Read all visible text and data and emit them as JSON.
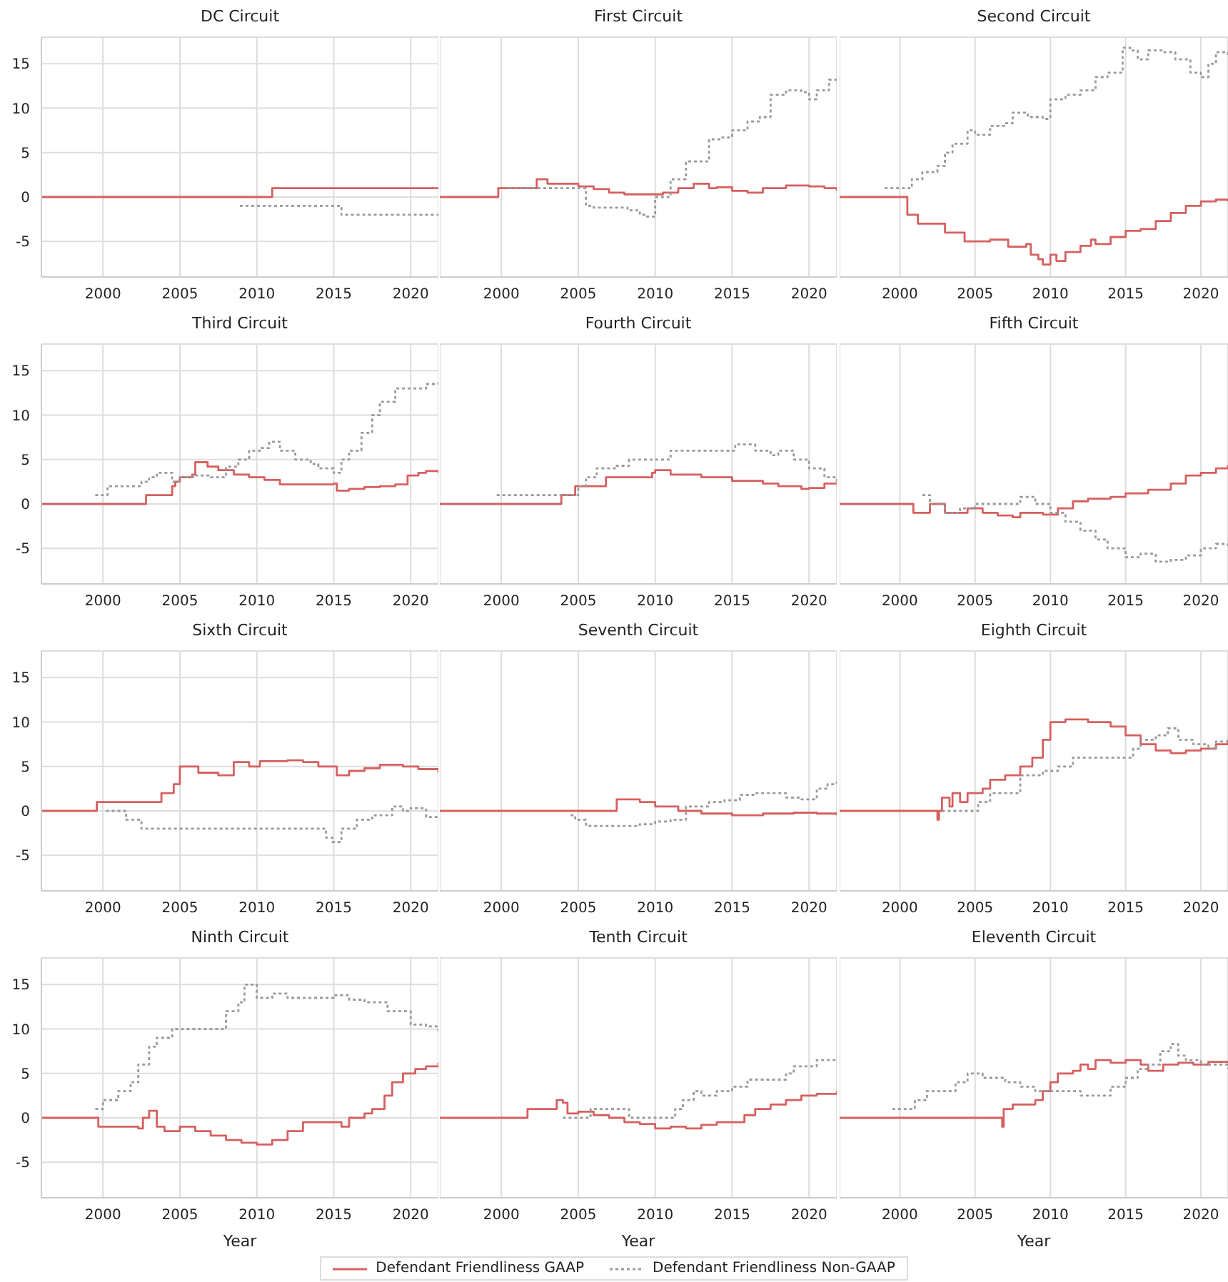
{
  "chart_data": [
    {
      "type": "step",
      "title": "DC Circuit",
      "xlim": [
        1996,
        2021.8
      ],
      "xticks": [
        2000,
        2005,
        2010,
        2015,
        2020
      ],
      "ylim": [
        -9,
        18
      ],
      "yticks": [
        -5,
        0,
        5,
        10,
        15
      ],
      "grid": true,
      "series": [
        {
          "color": "#d65f5f",
          "line_style": "solid",
          "x": [
            1996,
            2011,
            2021.8
          ],
          "values": [
            0,
            1,
            1
          ]
        },
        {
          "color": "#999999",
          "line_style": "dotted",
          "x": [
            2008.9,
            2015.5,
            2021.8
          ],
          "values": [
            -1,
            -2,
            -2
          ]
        }
      ]
    },
    {
      "type": "step",
      "title": "First Circuit",
      "xlim": [
        1996,
        2021.8
      ],
      "xticks": [
        2000,
        2005,
        2010,
        2015,
        2020
      ],
      "ylim": [
        -9,
        18
      ],
      "yticks": [
        -5,
        0,
        5,
        10,
        15
      ],
      "tick_labels": "x",
      "grid": true,
      "series": [
        {
          "color": "#d65f5f",
          "line_style": "solid",
          "x": [
            1996,
            1999.8,
            2002.3,
            2003,
            2005,
            2006,
            2007,
            2008,
            2010,
            2010.5,
            2011.5,
            2012.5,
            2013.5,
            2014,
            2015,
            2016,
            2017,
            2018.5,
            2020,
            2021,
            2021.8
          ],
          "values": [
            0,
            1,
            2,
            1.5,
            1.2,
            0.9,
            0.5,
            0.3,
            0.3,
            0.5,
            1,
            1.5,
            1,
            1.1,
            0.7,
            0.5,
            1,
            1.3,
            1.2,
            1,
            0.7
          ]
        },
        {
          "color": "#999999",
          "line_style": "dotted",
          "x": [
            2000.5,
            2005.5,
            2006,
            2008.2,
            2009,
            2009.3,
            2010,
            2011,
            2012,
            2012.8,
            2013.5,
            2014.3,
            2015,
            2016,
            2016.8,
            2017.5,
            2018.5,
            2019.5,
            2020,
            2020.5,
            2021.3,
            2021.8
          ],
          "values": [
            1,
            -1,
            -1.2,
            -1.5,
            -2,
            -2.2,
            0,
            2,
            4,
            4,
            6.5,
            6.7,
            7.5,
            8.5,
            9,
            11.5,
            12,
            11.8,
            11,
            12,
            13.2,
            12.8
          ]
        }
      ]
    },
    {
      "type": "step",
      "title": "Second Circuit",
      "xlim": [
        1996,
        2021.8
      ],
      "xticks": [
        2000,
        2005,
        2010,
        2015,
        2020
      ],
      "ylim": [
        -9,
        18
      ],
      "yticks": [
        -5,
        0,
        5,
        10,
        15
      ],
      "tick_labels": "x",
      "grid": true,
      "series": [
        {
          "color": "#d65f5f",
          "line_style": "solid",
          "x": [
            1996,
            2000.5,
            2001.2,
            2003,
            2004.3,
            2006,
            2007.2,
            2008.4,
            2008.7,
            2009.2,
            2009.5,
            2010,
            2010.4,
            2011,
            2012,
            2012.7,
            2013,
            2014,
            2015,
            2016,
            2017,
            2018,
            2019,
            2020,
            2021,
            2021.8
          ],
          "values": [
            0,
            -2,
            -3,
            -4,
            -5,
            -4.8,
            -5.6,
            -5.3,
            -6.5,
            -7,
            -7.6,
            -6.5,
            -7.2,
            -6.2,
            -5.5,
            -4.8,
            -5.3,
            -4.5,
            -3.8,
            -3.6,
            -2.7,
            -1.8,
            -1,
            -0.5,
            -0.3,
            -0.5
          ]
        },
        {
          "color": "#999999",
          "line_style": "dotted",
          "x": [
            1999,
            2000.8,
            2001.5,
            2002.5,
            2003,
            2003.5,
            2004.5,
            2005,
            2006,
            2007,
            2007.5,
            2008.5,
            2009.5,
            2010,
            2011,
            2012,
            2013,
            2013.8,
            2014.8,
            2015.3,
            2015.8,
            2016.5,
            2017.5,
            2018.3,
            2019.3,
            2020,
            2020.5,
            2021,
            2021.8
          ],
          "values": [
            1,
            2,
            2.8,
            3.5,
            5,
            6,
            7.5,
            7,
            8,
            8.3,
            9.5,
            9,
            8.8,
            11,
            11.5,
            12,
            13.5,
            14,
            16.8,
            16.5,
            15.5,
            16.5,
            16.3,
            15.5,
            14,
            13.5,
            15,
            16.3,
            15.8
          ]
        }
      ]
    },
    {
      "type": "step",
      "title": "Third Circuit",
      "xlim": [
        1996,
        2021.8
      ],
      "xticks": [
        2000,
        2005,
        2010,
        2015,
        2020
      ],
      "ylim": [
        -9,
        18
      ],
      "yticks": [
        -5,
        0,
        5,
        10,
        15
      ],
      "grid": true,
      "series": [
        {
          "color": "#d65f5f",
          "line_style": "solid",
          "x": [
            1996,
            2002.8,
            2004.5,
            2004.7,
            2005,
            2005.8,
            2006,
            2006.8,
            2007.5,
            2008.5,
            2009.5,
            2010.5,
            2011.5,
            2012.5,
            2014.5,
            2015,
            2015.2,
            2016,
            2017,
            2018,
            2019,
            2019.8,
            2020.5,
            2021,
            2021.8
          ],
          "values": [
            0,
            1,
            2,
            2.5,
            3,
            3.3,
            4.7,
            4.2,
            3.8,
            3.3,
            3,
            2.7,
            2.2,
            2.2,
            2.2,
            2.3,
            1.5,
            1.7,
            1.9,
            2,
            2.2,
            3.2,
            3.5,
            3.7,
            3.5
          ]
        },
        {
          "color": "#999999",
          "line_style": "dotted",
          "x": [
            1999.5,
            2000.3,
            2002.5,
            2003,
            2003.5,
            2004.5,
            2005,
            2006,
            2007,
            2008,
            2008.8,
            2009.5,
            2010.3,
            2010.8,
            2011.5,
            2012.5,
            2013.5,
            2014,
            2015,
            2015.5,
            2016,
            2016.8,
            2017.5,
            2018,
            2019,
            2020,
            2021,
            2021.8
          ],
          "values": [
            1,
            2,
            2.5,
            3,
            3.5,
            2.5,
            3,
            3.2,
            3,
            4.2,
            5,
            6,
            6.3,
            7,
            6,
            5,
            4.5,
            4,
            3.5,
            5,
            6,
            8,
            10,
            11.5,
            13,
            13,
            13.5,
            14
          ]
        }
      ]
    },
    {
      "type": "step",
      "title": "Fourth Circuit",
      "xlim": [
        1996,
        2021.8
      ],
      "xticks": [
        2000,
        2005,
        2010,
        2015,
        2020
      ],
      "ylim": [
        -9,
        18
      ],
      "yticks": [
        -5,
        0,
        5,
        10,
        15
      ],
      "tick_labels": "x",
      "grid": true,
      "series": [
        {
          "color": "#d65f5f",
          "line_style": "solid",
          "x": [
            1996,
            2003.9,
            2004.8,
            2006.8,
            2009.8,
            2010,
            2011,
            2013,
            2015,
            2017,
            2018,
            2019.5,
            2020,
            2021,
            2021.8
          ],
          "values": [
            0,
            1,
            2,
            3,
            3.5,
            3.8,
            3.3,
            3,
            2.6,
            2.3,
            2,
            1.7,
            1.8,
            2.3,
            2.2
          ]
        },
        {
          "color": "#999999",
          "line_style": "dotted",
          "x": [
            1999.7,
            2004.5,
            2005,
            2005.5,
            2006.2,
            2007.5,
            2008.3,
            2010.2,
            2011,
            2015,
            2015.2,
            2016.5,
            2017.5,
            2018,
            2019,
            2020,
            2021,
            2021.8
          ],
          "values": [
            1,
            1,
            2,
            3,
            4,
            4.3,
            5,
            5,
            6,
            6,
            6.7,
            6,
            5.5,
            6,
            5,
            4,
            3,
            2.5
          ]
        }
      ]
    },
    {
      "type": "step",
      "title": "Fifth Circuit",
      "xlim": [
        1996,
        2021.8
      ],
      "xticks": [
        2000,
        2005,
        2010,
        2015,
        2020
      ],
      "ylim": [
        -9,
        18
      ],
      "yticks": [
        -5,
        0,
        5,
        10,
        15
      ],
      "tick_labels": "x",
      "grid": true,
      "series": [
        {
          "color": "#d65f5f",
          "line_style": "solid",
          "x": [
            1996,
            2000.9,
            2002,
            2003,
            2004.5,
            2005.5,
            2006.5,
            2007.5,
            2008,
            2009.5,
            2010.5,
            2011.5,
            2012.5,
            2014,
            2015,
            2016.5,
            2018,
            2019,
            2020,
            2021,
            2021.8
          ],
          "values": [
            0,
            -1,
            0,
            -1,
            -0.5,
            -1,
            -1.3,
            -1.5,
            -1,
            -1.2,
            -0.5,
            0.3,
            0.6,
            0.8,
            1.2,
            1.6,
            2.3,
            3.2,
            3.5,
            4,
            4.4
          ]
        },
        {
          "color": "#999999",
          "line_style": "dotted",
          "x": [
            2001.5,
            2002,
            2003,
            2004,
            2005,
            2007,
            2008,
            2009,
            2010,
            2011,
            2012,
            2013,
            2013.8,
            2014.5,
            2015,
            2016,
            2017,
            2018,
            2019,
            2020,
            2021,
            2021.8
          ],
          "values": [
            1,
            0,
            -1,
            -0.5,
            0,
            0,
            0.8,
            0,
            -1,
            -2,
            -3,
            -4,
            -5,
            -5,
            -6,
            -5.6,
            -6.5,
            -6.3,
            -5.8,
            -5,
            -4.5,
            -4.8
          ]
        }
      ]
    },
    {
      "type": "step",
      "title": "Sixth Circuit",
      "xlim": [
        1996,
        2021.8
      ],
      "xticks": [
        2000,
        2005,
        2010,
        2015,
        2020
      ],
      "ylim": [
        -9,
        18
      ],
      "yticks": [
        -5,
        0,
        5,
        10,
        15
      ],
      "grid": true,
      "series": [
        {
          "color": "#d65f5f",
          "line_style": "solid",
          "x": [
            1996,
            1999.6,
            2003.8,
            2004.6,
            2005,
            2006.2,
            2007.5,
            2008.5,
            2009.5,
            2010.2,
            2012,
            2013,
            2014,
            2015.2,
            2016,
            2017,
            2018,
            2019.5,
            2020.5,
            2021.8
          ],
          "values": [
            0,
            1,
            2,
            3,
            5,
            4.3,
            4,
            5.5,
            5,
            5.6,
            5.7,
            5.5,
            5,
            4,
            4.5,
            4.8,
            5.2,
            5,
            4.7,
            4.3
          ]
        },
        {
          "color": "#999999",
          "line_style": "dotted",
          "x": [
            2000.2,
            2001.5,
            2002.5,
            2014,
            2014.5,
            2014.9,
            2015.5,
            2016.5,
            2017.5,
            2018.8,
            2019.5,
            2020,
            2021,
            2021.8
          ],
          "values": [
            0,
            -1,
            -2,
            -2,
            -3,
            -3.5,
            -2,
            -1,
            -0.5,
            0.5,
            0,
            0.3,
            -0.7,
            -0.5
          ]
        }
      ]
    },
    {
      "type": "step",
      "title": "Seventh Circuit",
      "xlim": [
        1996,
        2021.8
      ],
      "xticks": [
        2000,
        2005,
        2010,
        2015,
        2020
      ],
      "ylim": [
        -9,
        18
      ],
      "yticks": [
        -5,
        0,
        5,
        10,
        15
      ],
      "tick_labels": "x",
      "grid": true,
      "series": [
        {
          "color": "#d65f5f",
          "line_style": "solid",
          "x": [
            1996,
            2007.5,
            2009,
            2010,
            2011.5,
            2013,
            2015,
            2017,
            2019,
            2020.5,
            2021.8
          ],
          "values": [
            0,
            1.3,
            1,
            0.5,
            0,
            -0.3,
            -0.5,
            -0.3,
            -0.2,
            -0.3,
            -0.5
          ]
        },
        {
          "color": "#999999",
          "line_style": "dotted",
          "x": [
            2004.5,
            2004.8,
            2005.5,
            2008,
            2009,
            2010,
            2011,
            2012,
            2013.5,
            2014.5,
            2015.5,
            2016.5,
            2017.5,
            2018.5,
            2019.5,
            2020.5,
            2021.2,
            2021.8
          ],
          "values": [
            -0.5,
            -1,
            -1.7,
            -1.7,
            -1.5,
            -1.2,
            -1,
            0.5,
            1,
            1.2,
            1.8,
            2,
            2,
            1.5,
            1.3,
            2.5,
            3,
            3.3
          ]
        }
      ]
    },
    {
      "type": "step",
      "title": "Eighth Circuit",
      "xlim": [
        1996,
        2021.8
      ],
      "xticks": [
        2000,
        2005,
        2010,
        2015,
        2020
      ],
      "ylim": [
        -9,
        18
      ],
      "yticks": [
        -5,
        0,
        5,
        10,
        15
      ],
      "tick_labels": "x",
      "grid": true,
      "series": [
        {
          "color": "#d65f5f",
          "line_style": "solid",
          "x": [
            1996,
            2002.5,
            2002.6,
            2002.8,
            2003.3,
            2003.5,
            2004,
            2004.5,
            2005.5,
            2006,
            2007,
            2008,
            2008.8,
            2009.5,
            2010,
            2011,
            2012.5,
            2014,
            2015,
            2016,
            2017,
            2018,
            2019,
            2020,
            2021,
            2021.8
          ],
          "values": [
            0,
            -1,
            0,
            1.5,
            0.5,
            2,
            1,
            2,
            2.5,
            3.5,
            4,
            5,
            6,
            8,
            10,
            10.3,
            10,
            9.5,
            8.5,
            7.5,
            6.8,
            6.5,
            6.8,
            7,
            7.5,
            8
          ]
        },
        {
          "color": "#999999",
          "line_style": "dotted",
          "x": [
            2002.8,
            2005.2,
            2006,
            2008,
            2009.5,
            2010.5,
            2011.5,
            2015,
            2015.5,
            2016,
            2017,
            2017.8,
            2018.5,
            2019.5,
            2020.5,
            2021,
            2021.8
          ],
          "values": [
            0,
            1,
            2,
            4,
            4.5,
            5,
            6,
            6,
            7,
            8,
            8.5,
            9.3,
            8,
            7.5,
            7,
            7.8,
            8
          ]
        }
      ]
    },
    {
      "type": "step",
      "title": "Ninth Circuit",
      "xlim": [
        1996,
        2021.8
      ],
      "xticks": [
        2000,
        2005,
        2010,
        2015,
        2020
      ],
      "ylim": [
        -9,
        18
      ],
      "yticks": [
        -5,
        0,
        5,
        10,
        15
      ],
      "xlabel": "Year",
      "grid": true,
      "series": [
        {
          "color": "#d65f5f",
          "line_style": "solid",
          "x": [
            1996,
            1999.7,
            2002.3,
            2002.6,
            2003,
            2003.5,
            2004,
            2005,
            2006,
            2007,
            2008,
            2009,
            2010,
            2011,
            2012,
            2013,
            2014,
            2015,
            2015.5,
            2016,
            2017,
            2017.5,
            2018.3,
            2018.8,
            2019.5,
            2020.3,
            2021,
            2021.8
          ],
          "values": [
            0,
            -1,
            -1.2,
            0,
            0.8,
            -1,
            -1.5,
            -1,
            -1.5,
            -2,
            -2.5,
            -2.8,
            -3,
            -2.5,
            -1.5,
            -0.5,
            -0.5,
            -0.5,
            -1,
            0,
            0.5,
            1,
            2.5,
            4,
            5,
            5.5,
            5.8,
            6.2
          ]
        },
        {
          "color": "#999999",
          "line_style": "dotted",
          "x": [
            1999.5,
            2000,
            2001,
            2001.8,
            2002.3,
            2003,
            2003.5,
            2004.5,
            2007.5,
            2008,
            2008.8,
            2009.2,
            2010,
            2011,
            2012,
            2014,
            2015,
            2016,
            2017,
            2018.5,
            2020,
            2021,
            2021.8
          ],
          "values": [
            1,
            2,
            3,
            4,
            6,
            8,
            9,
            10,
            10,
            12,
            13,
            15,
            13.5,
            14,
            13.5,
            13.5,
            13.8,
            13.3,
            13,
            12,
            10.5,
            10.3,
            9.5
          ]
        }
      ]
    },
    {
      "type": "step",
      "title": "Tenth Circuit",
      "xlim": [
        1996,
        2021.8
      ],
      "xticks": [
        2000,
        2005,
        2010,
        2015,
        2020
      ],
      "ylim": [
        -9,
        18
      ],
      "yticks": [
        -5,
        0,
        5,
        10,
        15
      ],
      "tick_labels": "x",
      "xlabel": "Year",
      "grid": true,
      "legend": "bottom",
      "series": [
        {
          "name": "Defendant Friendliness GAAP",
          "color": "#d65f5f",
          "line_style": "solid",
          "x": [
            1996,
            2001.7,
            2003.6,
            2004,
            2004.3,
            2005,
            2006,
            2007,
            2008,
            2009,
            2010,
            2011,
            2012,
            2013,
            2014,
            2015,
            2015.8,
            2016.5,
            2017.5,
            2018.5,
            2019.5,
            2020.5,
            2021.8
          ],
          "values": [
            0,
            1,
            2,
            1.7,
            0.5,
            0.7,
            0.3,
            0,
            -0.5,
            -0.7,
            -1.2,
            -1,
            -1.2,
            -0.8,
            -0.5,
            -0.5,
            0.3,
            1,
            1.5,
            2,
            2.5,
            2.7,
            3
          ]
        },
        {
          "name": "Defendant Friendliness Non-GAAP",
          "color": "#999999",
          "line_style": "dotted",
          "x": [
            2004,
            2005.8,
            2008.3,
            2011.3,
            2011.8,
            2012.5,
            2013,
            2014,
            2015,
            2016,
            2018.5,
            2019,
            2020.5,
            2021.8
          ],
          "values": [
            0,
            1,
            0,
            1,
            2,
            3,
            2.5,
            3,
            3.5,
            4.3,
            5,
            5.8,
            6.5,
            6.5
          ]
        }
      ]
    },
    {
      "type": "step",
      "title": "Eleventh Circuit",
      "xlim": [
        1996,
        2021.8
      ],
      "xticks": [
        2000,
        2005,
        2010,
        2015,
        2020
      ],
      "ylim": [
        -9,
        18
      ],
      "yticks": [
        -5,
        0,
        5,
        10,
        15
      ],
      "tick_labels": "x",
      "xlabel": "Year",
      "grid": true,
      "series": [
        {
          "color": "#d65f5f",
          "line_style": "solid",
          "x": [
            1996,
            2006.8,
            2006.9,
            2007.5,
            2009,
            2009.5,
            2010,
            2010.5,
            2011.5,
            2012,
            2012.5,
            2013,
            2014,
            2015,
            2016,
            2016.5,
            2017.5,
            2018.5,
            2019.5,
            2020.5,
            2021.8
          ],
          "values": [
            0,
            -1,
            1,
            1.5,
            2,
            3,
            4,
            5,
            5.3,
            6,
            5.5,
            6.5,
            6.2,
            6.5,
            6,
            5.3,
            6,
            6.2,
            6,
            6.3,
            6.2
          ]
        },
        {
          "color": "#999999",
          "line_style": "dotted",
          "x": [
            1999.5,
            2001,
            2001.8,
            2003,
            2003.7,
            2004.5,
            2005.5,
            2007,
            2008,
            2009,
            2012,
            2013,
            2014,
            2015,
            2015.8,
            2016.5,
            2017.3,
            2018,
            2018.5,
            2019,
            2020,
            2021.8
          ],
          "values": [
            1,
            2,
            3,
            3,
            4,
            5,
            4.5,
            4,
            3.5,
            3,
            2.5,
            2.5,
            3.5,
            4.5,
            5.5,
            6,
            7.5,
            8.3,
            7,
            6.5,
            6,
            5.5
          ]
        }
      ]
    }
  ]
}
